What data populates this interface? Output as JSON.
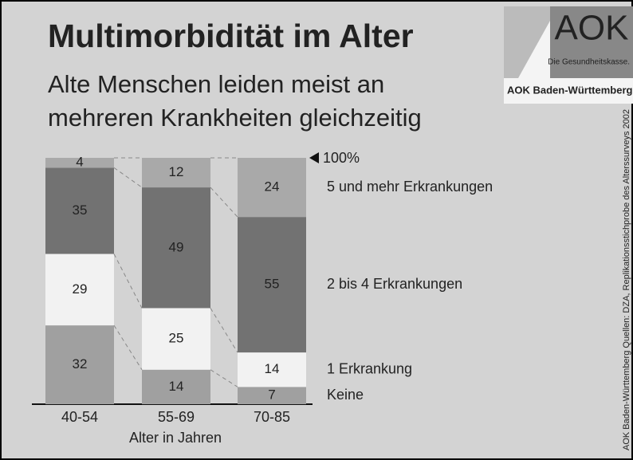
{
  "chart_data": {
    "type": "stacked_bar",
    "title": "Multimorbidität im Alter",
    "subtitle": [
      "Alte Menschen leiden meist an",
      "mehreren Krankheiten gleichzeitig"
    ],
    "x_label": "Alter in Jahren",
    "annotation": "100%",
    "logo": {
      "brand": "AOK",
      "slogan": "Die Gesundheitskasse.",
      "region": "AOK Baden-Württemberg"
    },
    "source": "AOK Baden-Württemberg   Quellen: DZA, Replikationsstichprobe des Alterssurveys 2002",
    "categories": [
      "40-54",
      "55-69",
      "70-85"
    ],
    "ylim": [
      0,
      100
    ],
    "series": [
      {
        "name": "Keine",
        "color": "#a0a0a0",
        "values": [
          32,
          14,
          7
        ]
      },
      {
        "name": "1 Erkrankung",
        "color": "#f2f2f2",
        "values": [
          29,
          25,
          14
        ]
      },
      {
        "name": "2 bis 4 Erkrankungen",
        "color": "#727272",
        "values": [
          35,
          49,
          55
        ]
      },
      {
        "name": "5 und mehr Erkrankungen",
        "color": "#a9a9a9",
        "values": [
          4,
          12,
          24
        ]
      }
    ]
  }
}
